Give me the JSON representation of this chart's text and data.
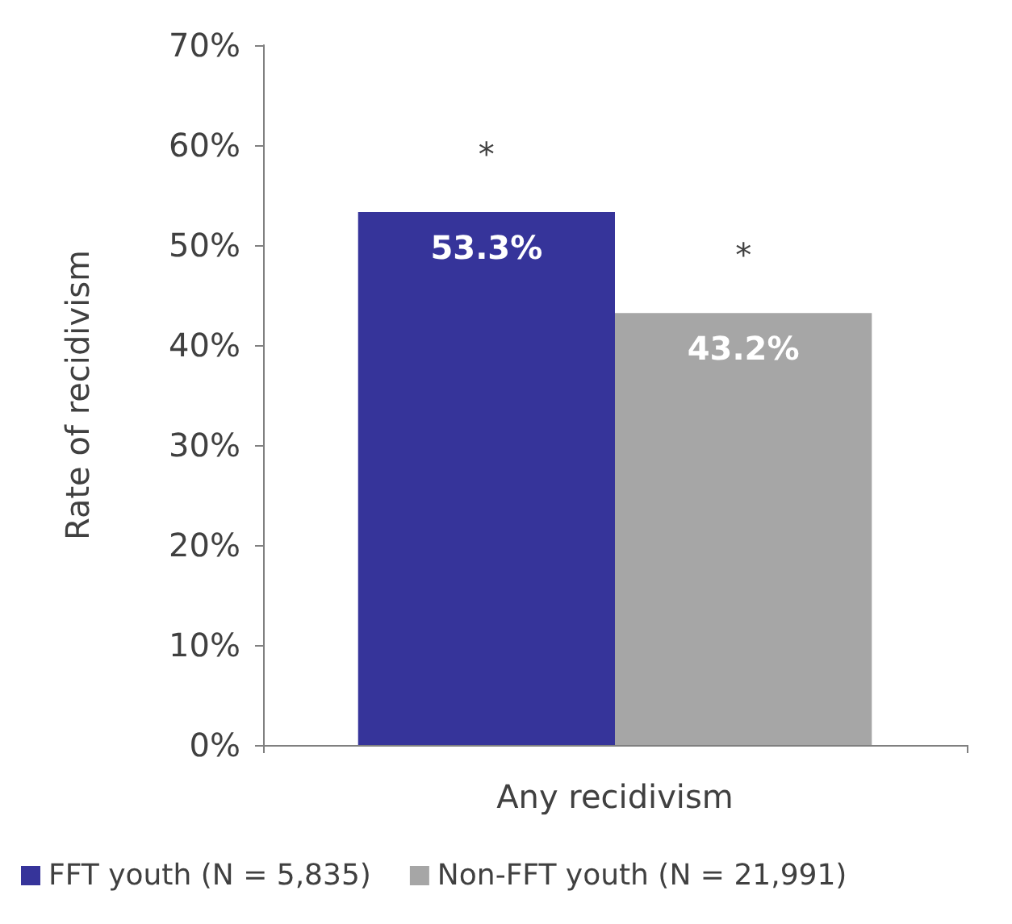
{
  "chart_data": {
    "type": "bar",
    "ylabel": "Rate of recidivism",
    "categories": [
      "Any recidivism"
    ],
    "series": [
      {
        "name": "FFT youth (N = 5,835)",
        "color": "#36349a",
        "values": [
          53.3
        ],
        "value_labels": [
          "53.3%"
        ]
      },
      {
        "name": "Non-FFT youth (N = 21,991)",
        "color": "#a6a6a6",
        "values": [
          43.2
        ],
        "value_labels": [
          "43.2%"
        ]
      }
    ],
    "ylim": [
      0,
      70
    ],
    "yticks": [
      {
        "value": 0,
        "label": "0%"
      },
      {
        "value": 10,
        "label": "10%"
      },
      {
        "value": 20,
        "label": "20%"
      },
      {
        "value": 30,
        "label": "30%"
      },
      {
        "value": 40,
        "label": "40%"
      },
      {
        "value": 50,
        "label": "50%"
      },
      {
        "value": 60,
        "label": "60%"
      },
      {
        "value": 70,
        "label": "70%"
      }
    ],
    "annotations": [
      "*",
      "*"
    ],
    "grid": false,
    "legend": "bottom"
  }
}
